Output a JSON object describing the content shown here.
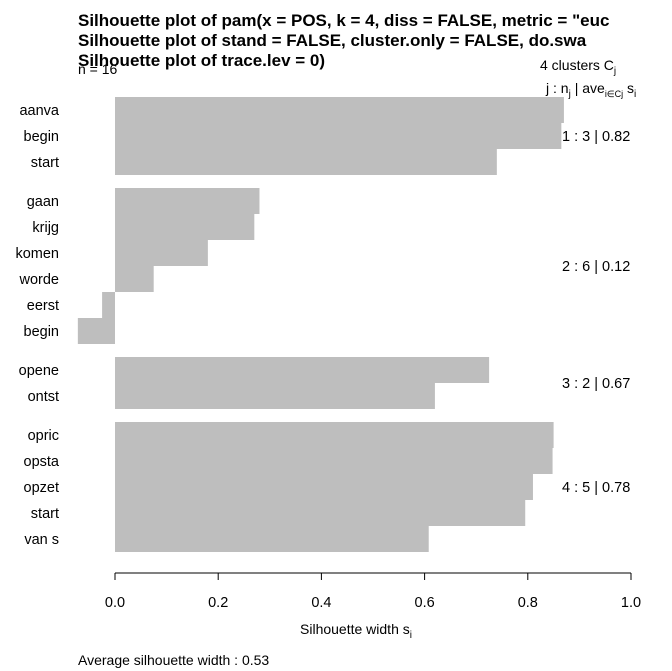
{
  "chart_data": {
    "type": "bar",
    "orientation": "horizontal",
    "title_lines": [
      "Silhouette plot of pam(x = POS, k = 4, diss = FALSE, metric = \"euc",
      "Silhouette plot of     stand = FALSE, cluster.only = FALSE, do.swa",
      "Silhouette plot of     trace.lev = 0)"
    ],
    "n_label": "n = 16",
    "clusters_header": "4  clusters  C",
    "clusters_header_sub": "j",
    "legend_header": {
      "j": "j :  n",
      "j_sub": "j",
      "ave": " | ave",
      "ave_sub": "i∈Cj",
      "s": "  s",
      "s_sub": "i"
    },
    "xlabel": "Silhouette width s",
    "xlabel_sub": "i",
    "xlim": [
      0,
      1
    ],
    "x_ticks": [
      0.0,
      0.2,
      0.4,
      0.6,
      0.8,
      1.0
    ],
    "x_tick_labels": [
      "0.0",
      "0.2",
      "0.4",
      "0.6",
      "0.8",
      "1.0"
    ],
    "bar_color": "#bebebe",
    "clusters": [
      {
        "summary": "1 :  3  |  0.82",
        "items": [
          {
            "label": "aanva",
            "value": 0.87
          },
          {
            "label": "begin",
            "value": 0.865
          },
          {
            "label": "start",
            "value": 0.74
          }
        ]
      },
      {
        "summary": "2 :  6  |  0.12",
        "items": [
          {
            "label": "gaan",
            "value": 0.28
          },
          {
            "label": "krijg",
            "value": 0.27
          },
          {
            "label": "komen",
            "value": 0.18
          },
          {
            "label": "worde",
            "value": 0.075
          },
          {
            "label": "eerst",
            "value": -0.025
          },
          {
            "label": "begin",
            "value": -0.072
          }
        ]
      },
      {
        "summary": "3 :  2  |  0.67",
        "items": [
          {
            "label": "opene",
            "value": 0.725
          },
          {
            "label": "ontst",
            "value": 0.62
          }
        ]
      },
      {
        "summary": "4 :  5  |  0.78",
        "items": [
          {
            "label": "opric",
            "value": 0.85
          },
          {
            "label": "opsta",
            "value": 0.848
          },
          {
            "label": "opzet",
            "value": 0.81
          },
          {
            "label": "start",
            "value": 0.795
          },
          {
            "label": "van s",
            "value": 0.608
          }
        ]
      }
    ],
    "footer": "Average silhouette width :  0.53"
  }
}
